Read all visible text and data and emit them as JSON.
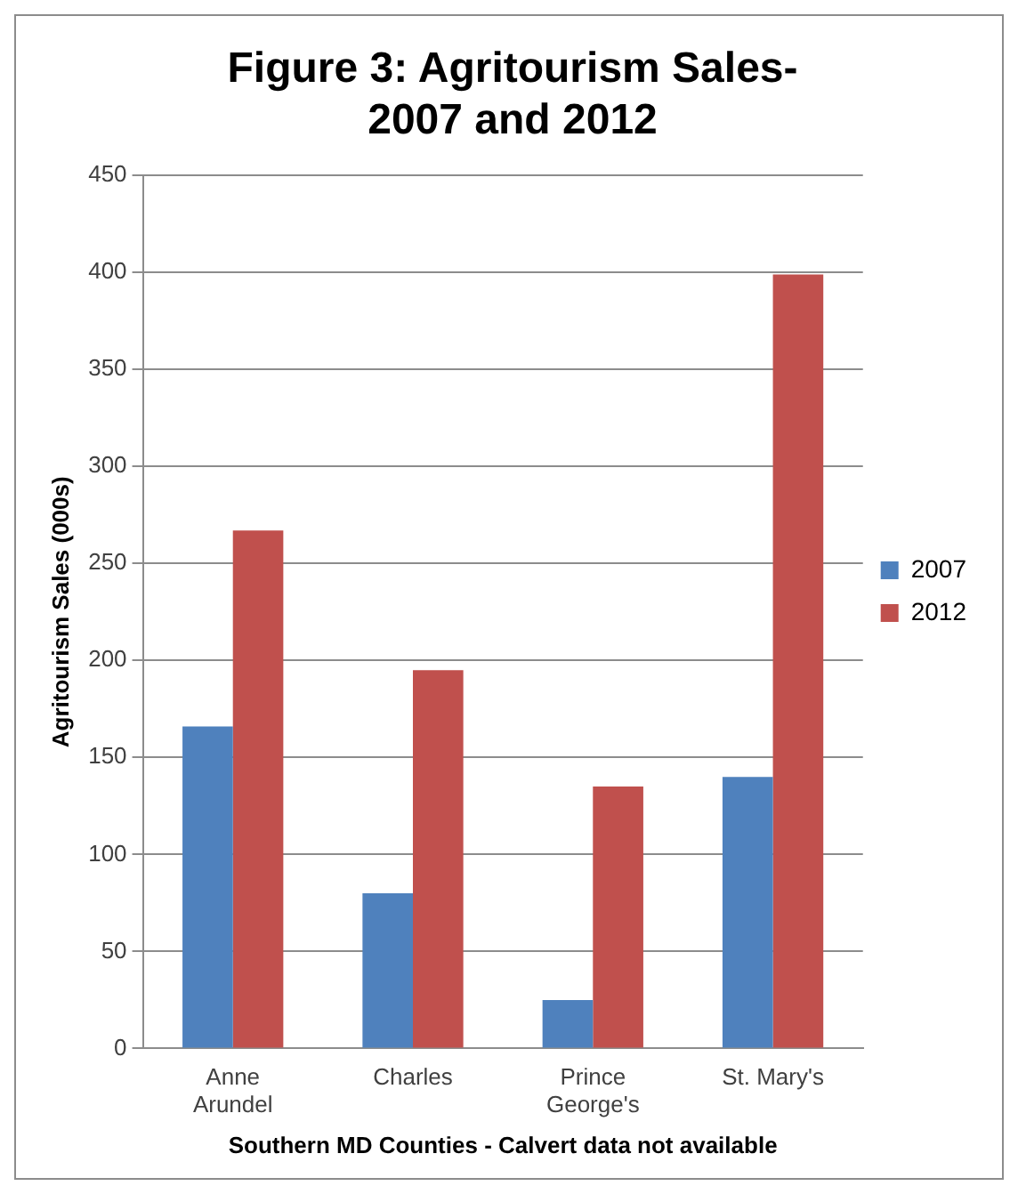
{
  "chart_data": {
    "type": "bar",
    "title": "Figure 3: Agritourism Sales- 2007 and 2012",
    "xlabel": "Southern MD Counties - Calvert data not available",
    "ylabel": "Agritourism Sales (000s)",
    "categories": [
      "Anne Arundel",
      "Charles",
      "Prince George's",
      "St. Mary's"
    ],
    "series": [
      {
        "name": "2007",
        "color": "#4f81bd",
        "values": [
          166,
          80,
          25,
          140
        ]
      },
      {
        "name": "2012",
        "color": "#c0504d",
        "values": [
          267,
          195,
          135,
          399
        ]
      }
    ],
    "ylim": [
      0,
      450
    ],
    "yticks": [
      0,
      50,
      100,
      150,
      200,
      250,
      300,
      350,
      400,
      450
    ],
    "grid": "y",
    "legend": "right"
  }
}
